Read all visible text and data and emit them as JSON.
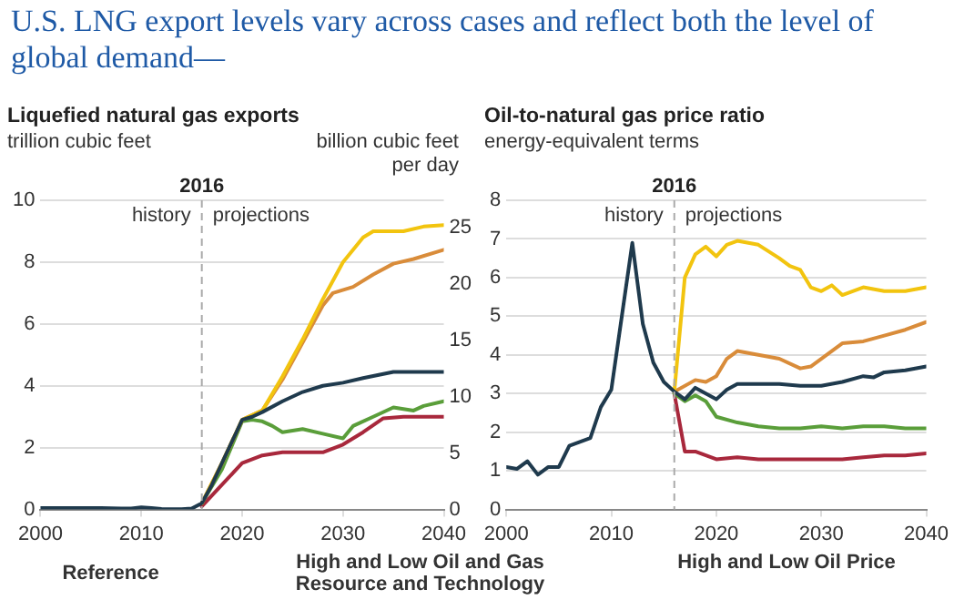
{
  "chart_data": [
    {
      "type": "line",
      "title": "U.S. LNG export levels vary across cases and reflect both the level of global demand—",
      "subtitle": "Liquefied natural gas exports",
      "ylabel": "trillion cubic feet",
      "y2label": "billion cubic feet per day",
      "xlim": [
        2000,
        2040
      ],
      "xticks": [
        2000,
        2010,
        2020,
        2030,
        2040
      ],
      "ylim": [
        0,
        10
      ],
      "yticks": [
        0,
        2,
        4,
        6,
        8,
        10
      ],
      "y2lim": [
        0,
        27.4
      ],
      "y2ticks": [
        0,
        5,
        10,
        15,
        20,
        25
      ],
      "grid": "y",
      "legend": false,
      "marker": "none",
      "line_style": "solid",
      "ref_lines": [
        {
          "axis": "x",
          "value": 2016,
          "label": "2016",
          "color": "#aaaaaa",
          "line_style": "dashed"
        }
      ],
      "annotations": [
        "history",
        "projections",
        "Reference",
        "High and Low Oil and Gas Resource and Technology"
      ],
      "series": [
        {
          "color": "#1f3a4d",
          "x": [
            2000,
            2001,
            2002,
            2003,
            2004,
            2005,
            2006,
            2007,
            2008,
            2009,
            2010,
            2011,
            2012,
            2013,
            2014,
            2015,
            2016,
            2017,
            2018,
            2019,
            2020,
            2021,
            2022,
            2024,
            2026,
            2028,
            2030,
            2032,
            2035,
            2040
          ],
          "values": [
            0.05,
            0.05,
            0.05,
            0.05,
            0.05,
            0.05,
            0.05,
            0.04,
            0.03,
            0.03,
            0.07,
            0.05,
            0.02,
            0.01,
            0.01,
            0.03,
            0.2,
            0.8,
            1.5,
            2.2,
            2.9,
            3.0,
            3.15,
            3.5,
            3.8,
            4.0,
            4.1,
            4.25,
            4.45,
            4.45
          ]
        },
        {
          "color": "#f2c40f",
          "x": [
            2016,
            2018,
            2020,
            2022,
            2024,
            2026,
            2028,
            2030,
            2032,
            2033,
            2036,
            2038,
            2040
          ],
          "values": [
            0.2,
            1.5,
            2.9,
            3.2,
            4.3,
            5.5,
            6.8,
            8.0,
            8.8,
            9.0,
            9.0,
            9.15,
            9.2
          ]
        },
        {
          "color": "#d98c3a",
          "x": [
            2016,
            2018,
            2020,
            2022,
            2024,
            2026,
            2028,
            2029,
            2031,
            2033,
            2035,
            2037,
            2040
          ],
          "values": [
            0.2,
            1.5,
            2.9,
            3.2,
            4.2,
            5.4,
            6.6,
            7.0,
            7.2,
            7.6,
            7.95,
            8.1,
            8.4
          ]
        },
        {
          "color": "#5a9e3a",
          "x": [
            2016,
            2018,
            2020,
            2021,
            2022,
            2023,
            2024,
            2026,
            2028,
            2030,
            2031,
            2033,
            2035,
            2037,
            2038,
            2040
          ],
          "values": [
            0.2,
            1.3,
            2.85,
            2.9,
            2.85,
            2.7,
            2.5,
            2.6,
            2.45,
            2.3,
            2.7,
            3.0,
            3.3,
            3.2,
            3.35,
            3.5
          ]
        },
        {
          "color": "#a8283c",
          "x": [
            2016,
            2018,
            2020,
            2022,
            2024,
            2026,
            2028,
            2030,
            2032,
            2034,
            2036,
            2040
          ],
          "values": [
            0.1,
            0.8,
            1.5,
            1.75,
            1.85,
            1.85,
            1.85,
            2.1,
            2.5,
            2.95,
            3.0,
            3.0
          ]
        }
      ]
    },
    {
      "type": "line",
      "subtitle": "Oil-to-natural gas price ratio",
      "ylabel": "energy-equivalent terms",
      "xlim": [
        2000,
        2040
      ],
      "xticks": [
        2000,
        2010,
        2020,
        2030,
        2040
      ],
      "ylim": [
        0,
        8
      ],
      "yticks": [
        0,
        1,
        2,
        3,
        4,
        5,
        6,
        7,
        8
      ],
      "grid": "y",
      "legend": false,
      "marker": "none",
      "line_style": "solid",
      "ref_lines": [
        {
          "axis": "x",
          "value": 2016,
          "label": "2016",
          "color": "#aaaaaa",
          "line_style": "dashed"
        }
      ],
      "annotations": [
        "history",
        "projections",
        "High and Low Oil Price"
      ],
      "series": [
        {
          "color": "#1f3a4d",
          "x": [
            2000,
            2001,
            2002,
            2003,
            2004,
            2005,
            2006,
            2007,
            2008,
            2009,
            2010,
            2011,
            2012,
            2013,
            2014,
            2015,
            2016,
            2017,
            2018,
            2019,
            2020,
            2021,
            2022,
            2024,
            2026,
            2028,
            2030,
            2032,
            2034,
            2035,
            2036,
            2038,
            2040
          ],
          "values": [
            1.1,
            1.05,
            1.25,
            0.9,
            1.1,
            1.1,
            1.65,
            1.75,
            1.85,
            2.65,
            3.1,
            5.0,
            6.9,
            4.8,
            3.8,
            3.3,
            3.05,
            2.85,
            3.15,
            3.0,
            2.85,
            3.1,
            3.25,
            3.25,
            3.25,
            3.2,
            3.2,
            3.3,
            3.45,
            3.42,
            3.55,
            3.6,
            3.7
          ]
        },
        {
          "color": "#f2c40f",
          "x": [
            2016,
            2017,
            2018,
            2019,
            2020,
            2021,
            2022,
            2024,
            2026,
            2027,
            2028,
            2029,
            2030,
            2031,
            2032,
            2034,
            2036,
            2038,
            2040
          ],
          "values": [
            3.05,
            6.0,
            6.6,
            6.8,
            6.55,
            6.85,
            6.95,
            6.85,
            6.5,
            6.3,
            6.2,
            5.75,
            5.65,
            5.8,
            5.55,
            5.75,
            5.65,
            5.65,
            5.75
          ]
        },
        {
          "color": "#d98c3a",
          "x": [
            2016,
            2018,
            2019,
            2020,
            2021,
            2022,
            2024,
            2026,
            2028,
            2029,
            2031,
            2032,
            2034,
            2036,
            2038,
            2040
          ],
          "values": [
            3.05,
            3.35,
            3.3,
            3.45,
            3.9,
            4.1,
            4.0,
            3.9,
            3.65,
            3.7,
            4.1,
            4.3,
            4.35,
            4.5,
            4.65,
            4.85
          ]
        },
        {
          "color": "#5a9e3a",
          "x": [
            2016,
            2017,
            2018,
            2019,
            2020,
            2022,
            2024,
            2026,
            2028,
            2030,
            2032,
            2034,
            2036,
            2038,
            2040
          ],
          "values": [
            3.0,
            2.8,
            2.95,
            2.8,
            2.4,
            2.25,
            2.15,
            2.1,
            2.1,
            2.15,
            2.1,
            2.15,
            2.15,
            2.1,
            2.1
          ]
        },
        {
          "color": "#a8283c",
          "x": [
            2016,
            2017,
            2018,
            2019,
            2020,
            2022,
            2024,
            2026,
            2028,
            2030,
            2032,
            2034,
            2036,
            2038,
            2040
          ],
          "values": [
            3.0,
            1.5,
            1.5,
            1.4,
            1.3,
            1.35,
            1.3,
            1.3,
            1.3,
            1.3,
            1.3,
            1.35,
            1.4,
            1.4,
            1.45
          ]
        }
      ]
    }
  ]
}
